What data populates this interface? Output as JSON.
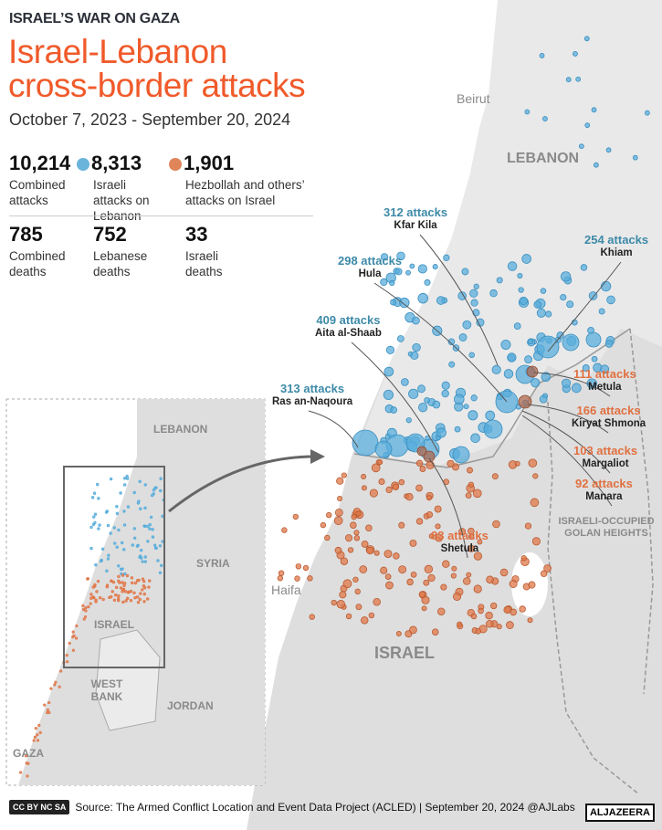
{
  "kicker": "ISRAEL’S WAR ON GAZA",
  "title_line1": "Israel-Lebanon",
  "title_line2": "cross-border attacks",
  "dates": "October 7, 2023 - September 20, 2024",
  "colors": {
    "israeli_attacks": "#5aaedc",
    "hezbollah_attacks": "#e0784a",
    "title": "#f05a2a",
    "blue_label": "#3d8aa8",
    "orange_label": "#e07040"
  },
  "stats": {
    "combined_attacks": {
      "value": "10,214",
      "label": "Combined attacks"
    },
    "israeli_attacks": {
      "value": "8,313",
      "label": "Israeli attacks on Lebanon"
    },
    "hezbollah_attacks": {
      "value": "1,901",
      "label": "Hezbollah and others’ attacks on Israel"
    },
    "combined_deaths": {
      "value": "785",
      "label": "Combined deaths"
    },
    "lebanese_deaths": {
      "value": "752",
      "label": "Lebanese deaths"
    },
    "israeli_deaths": {
      "value": "33",
      "label": "Israeli deaths"
    }
  },
  "map_labels": {
    "beirut": "Beirut",
    "lebanon": "LEBANON",
    "haifa": "Haifa",
    "israel": "ISRAEL",
    "golan": "ISRAELI-OCCUPIED GOLAN HEIGHTS"
  },
  "inset_labels": {
    "lebanon": "LEBANON",
    "syria": "SYRIA",
    "israel": "ISRAEL",
    "west_bank": "WEST BANK",
    "jordan": "JORDAN",
    "gaza": "GAZA"
  },
  "locations": [
    {
      "attacks": "312 attacks",
      "place": "Kfar Kila",
      "side": "israeli"
    },
    {
      "attacks": "254 attacks",
      "place": "Khiam",
      "side": "israeli"
    },
    {
      "attacks": "298 attacks",
      "place": "Hula",
      "side": "israeli"
    },
    {
      "attacks": "409 attacks",
      "place": "Aita al-Shaab",
      "side": "israeli"
    },
    {
      "attacks": "313 attacks",
      "place": "Ras an-Naqoura",
      "side": "israeli"
    },
    {
      "attacks": "111 attacks",
      "place": "Metula",
      "side": "hezbollah"
    },
    {
      "attacks": "166 attacks",
      "place": "Kiryat Shmona",
      "side": "hezbollah"
    },
    {
      "attacks": "103 attacks",
      "place": "Margaliot",
      "side": "hezbollah"
    },
    {
      "attacks": "92 attacks",
      "place": "Manara",
      "side": "hezbollah"
    },
    {
      "attacks": "83 attacks",
      "place": "Shetula",
      "side": "hezbollah"
    }
  ],
  "footer": {
    "license": "CC BY NC SA",
    "source": "Source:  The Armed Conflict Location and Event Data Project (ACLED) | September 20, 2024  @AJLabs",
    "logo": "ALJAZEERA"
  }
}
